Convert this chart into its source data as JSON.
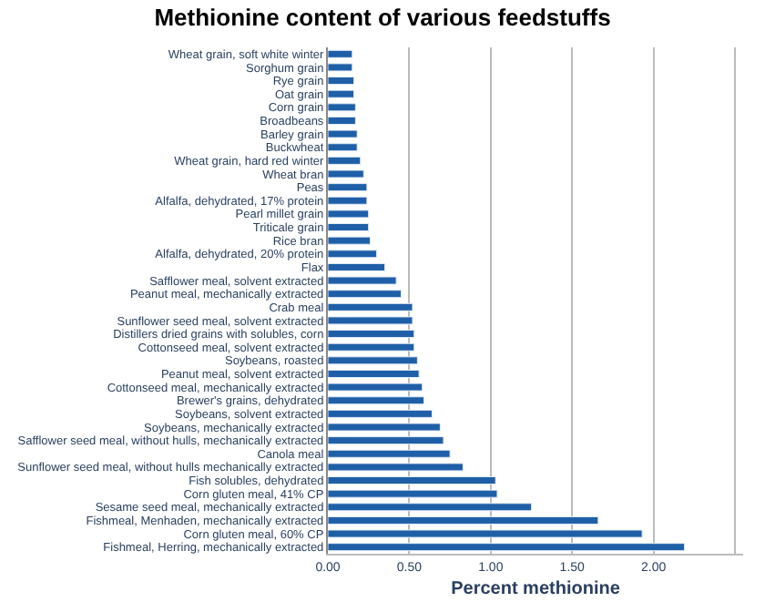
{
  "chart_data": {
    "type": "bar",
    "orientation": "horizontal",
    "title": "Methionine content of various feedstuffs",
    "xlabel": "Percent methionine",
    "categories": [
      "Wheat grain, soft white winter",
      "Sorghum grain",
      "Rye grain",
      "Oat grain",
      "Corn grain",
      "Broadbeans",
      "Barley grain",
      "Buckwheat",
      "Wheat grain, hard red winter",
      "Wheat bran",
      "Peas",
      "Alfalfa, dehydrated, 17% protein",
      "Pearl millet grain",
      "Triticale grain",
      "Rice bran",
      "Alfalfa, dehydrated, 20% protein",
      "Flax",
      "Safflower meal, solvent extracted",
      "Peanut meal, mechanically extracted",
      "Crab meal",
      "Sunflower seed meal, solvent extracted",
      "Distillers dried grains with solubles, corn",
      "Cottonseed meal, solvent extracted",
      "Soybeans, roasted",
      "Peanut meal, solvent extracted",
      "Cottonseed meal, mechanically extracted",
      "Brewer's grains, dehydrated",
      "Soybeans, solvent extracted",
      "Soybeans, mechanically extracted",
      "Safflower seed meal, without hulls, mechanically extracted",
      "Canola meal",
      "Sunflower seed meal, without hulls mechanically extracted",
      "Fish solubles, dehydrated",
      "Corn gluten meal, 41% CP",
      "Sesame seed meal, mechanically extracted",
      "Fishmeal, Menhaden, mechanically extracted",
      "Corn gluten meal, 60% CP",
      "Fishmeal, Herring, mechanically extracted"
    ],
    "values": [
      0.15,
      0.15,
      0.16,
      0.16,
      0.17,
      0.17,
      0.18,
      0.18,
      0.2,
      0.22,
      0.24,
      0.24,
      0.25,
      0.25,
      0.26,
      0.3,
      0.35,
      0.42,
      0.45,
      0.52,
      0.52,
      0.53,
      0.53,
      0.55,
      0.56,
      0.58,
      0.59,
      0.64,
      0.69,
      0.71,
      0.75,
      0.83,
      1.03,
      1.04,
      1.25,
      1.66,
      1.93,
      2.19
    ],
    "color": "#1f5fa8",
    "xlim": [
      0,
      2.55
    ],
    "xticks": [
      {
        "value": 0,
        "label": "0.00"
      },
      {
        "value": 0.5,
        "label": "0.50"
      },
      {
        "value": 1,
        "label": "1.00"
      },
      {
        "value": 1.5,
        "label": "1.50"
      },
      {
        "value": 2,
        "label": "2.00"
      },
      {
        "value": 2.5,
        "label": null
      }
    ],
    "grid": "x"
  }
}
